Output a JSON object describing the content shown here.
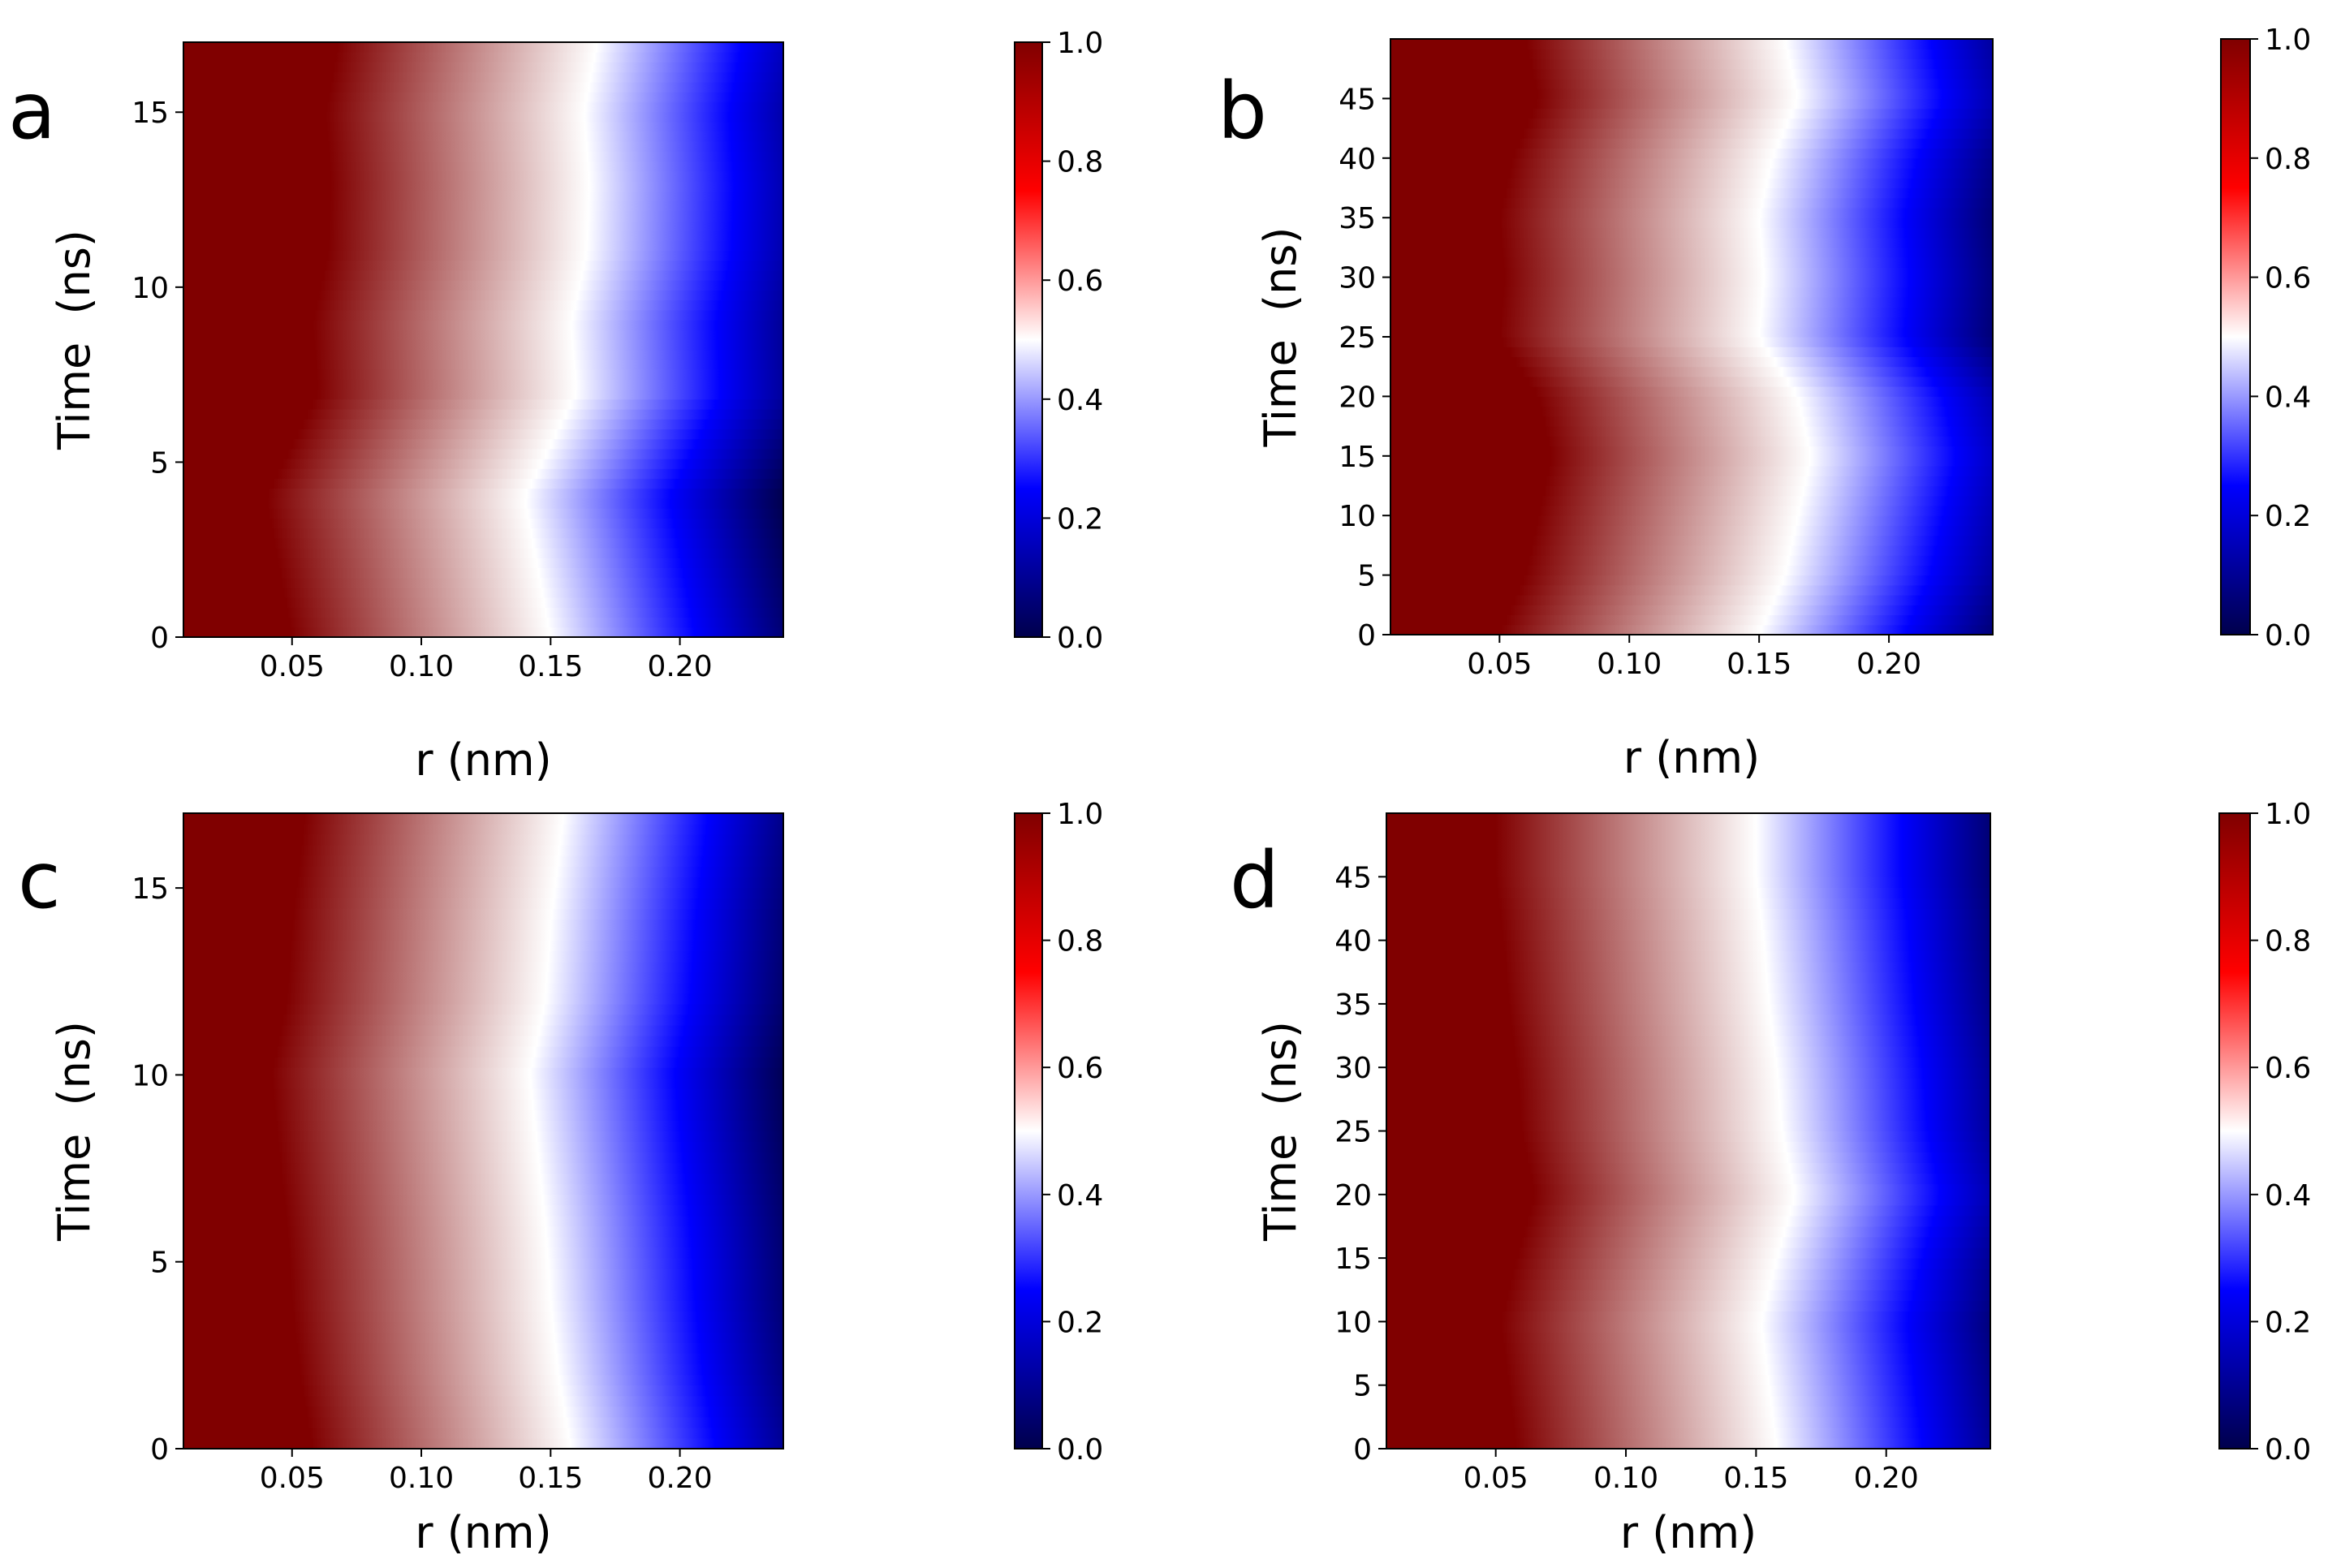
{
  "chart_data": [
    {
      "type": "heatmap",
      "panel_label": "a",
      "xlabel": "r (nm)",
      "ylabel": "Time  (ns)",
      "xlim": [
        0.008,
        0.24
      ],
      "ylim": [
        0,
        17
      ],
      "xticks": [
        0.05,
        0.1,
        0.15,
        0.2
      ],
      "xtick_labels": [
        "0.05",
        "0.10",
        "0.15",
        "0.20"
      ],
      "yticks": [
        0,
        5,
        10,
        15
      ],
      "ytick_labels": [
        "0",
        "5",
        "10",
        "15"
      ],
      "colorbar": {
        "min": 0.0,
        "max": 1.0,
        "ticks": [
          "0.0",
          "0.2",
          "0.4",
          "0.6",
          "0.8",
          "1.0"
        ],
        "colormap": "seismic"
      },
      "boundary_r_at_time": [
        {
          "t": 0,
          "r": 0.15
        },
        {
          "t": 2,
          "r": 0.145
        },
        {
          "t": 4,
          "r": 0.14
        },
        {
          "t": 5.5,
          "r": 0.15
        },
        {
          "t": 7,
          "r": 0.16
        },
        {
          "t": 9,
          "r": 0.158
        },
        {
          "t": 11,
          "r": 0.164
        },
        {
          "t": 13,
          "r": 0.165
        },
        {
          "t": 15,
          "r": 0.163
        },
        {
          "t": 17,
          "r": 0.168
        }
      ]
    },
    {
      "type": "heatmap",
      "panel_label": "b",
      "xlabel": "r (nm)",
      "ylabel": "Time  (ns)",
      "xlim": [
        0.008,
        0.24
      ],
      "ylim": [
        0,
        50
      ],
      "xticks": [
        0.05,
        0.1,
        0.15,
        0.2
      ],
      "xtick_labels": [
        "0.05",
        "0.10",
        "0.15",
        "0.20"
      ],
      "yticks": [
        0,
        5,
        10,
        15,
        20,
        25,
        30,
        35,
        40,
        45
      ],
      "ytick_labels": [
        "0",
        "5",
        "10",
        "15",
        "20",
        "25",
        "30",
        "35",
        "40",
        "45"
      ],
      "colorbar": {
        "min": 0.0,
        "max": 1.0,
        "ticks": [
          "0.0",
          "0.2",
          "0.4",
          "0.6",
          "0.8",
          "1.0"
        ],
        "colormap": "seismic"
      },
      "boundary_r_at_time": [
        {
          "t": 0,
          "r": 0.15
        },
        {
          "t": 5,
          "r": 0.16
        },
        {
          "t": 10,
          "r": 0.165
        },
        {
          "t": 15,
          "r": 0.17
        },
        {
          "t": 20,
          "r": 0.165
        },
        {
          "t": 25,
          "r": 0.15
        },
        {
          "t": 30,
          "r": 0.152
        },
        {
          "t": 35,
          "r": 0.15
        },
        {
          "t": 40,
          "r": 0.155
        },
        {
          "t": 45,
          "r": 0.165
        },
        {
          "t": 50,
          "r": 0.16
        }
      ]
    },
    {
      "type": "heatmap",
      "panel_label": "c",
      "xlabel": "r (nm)",
      "ylabel": "Time  (ns)",
      "xlim": [
        0.008,
        0.24
      ],
      "ylim": [
        0,
        17
      ],
      "xticks": [
        0.05,
        0.1,
        0.15,
        0.2
      ],
      "xtick_labels": [
        "0.05",
        "0.10",
        "0.15",
        "0.20"
      ],
      "yticks": [
        0,
        5,
        10,
        15
      ],
      "ytick_labels": [
        "0",
        "5",
        "10",
        "15"
      ],
      "colorbar": {
        "min": 0.0,
        "max": 1.0,
        "ticks": [
          "0.0",
          "0.2",
          "0.4",
          "0.6",
          "0.8",
          "1.0"
        ],
        "colormap": "seismic"
      },
      "boundary_r_at_time": [
        {
          "t": 0,
          "r": 0.158
        },
        {
          "t": 2,
          "r": 0.153
        },
        {
          "t": 4,
          "r": 0.15
        },
        {
          "t": 6,
          "r": 0.148
        },
        {
          "t": 8,
          "r": 0.145
        },
        {
          "t": 10,
          "r": 0.142
        },
        {
          "t": 12,
          "r": 0.148
        },
        {
          "t": 14,
          "r": 0.15
        },
        {
          "t": 17,
          "r": 0.155
        }
      ]
    },
    {
      "type": "heatmap",
      "panel_label": "d",
      "xlabel": "r (nm)",
      "ylabel": "Time  (ns)",
      "xlim": [
        0.008,
        0.24
      ],
      "ylim": [
        0,
        50
      ],
      "xticks": [
        0.05,
        0.1,
        0.15,
        0.2
      ],
      "xtick_labels": [
        "0.05",
        "0.10",
        "0.15",
        "0.20"
      ],
      "yticks": [
        0,
        5,
        10,
        15,
        20,
        25,
        30,
        35,
        40,
        45
      ],
      "ytick_labels": [
        "0",
        "5",
        "10",
        "15",
        "20",
        "25",
        "30",
        "35",
        "40",
        "45"
      ],
      "colorbar": {
        "min": 0.0,
        "max": 1.0,
        "ticks": [
          "0.0",
          "0.2",
          "0.4",
          "0.6",
          "0.8",
          "1.0"
        ],
        "colormap": "seismic"
      },
      "boundary_r_at_time": [
        {
          "t": 0,
          "r": 0.158
        },
        {
          "t": 5,
          "r": 0.155
        },
        {
          "t": 10,
          "r": 0.152
        },
        {
          "t": 15,
          "r": 0.158
        },
        {
          "t": 20,
          "r": 0.165
        },
        {
          "t": 25,
          "r": 0.16
        },
        {
          "t": 30,
          "r": 0.158
        },
        {
          "t": 35,
          "r": 0.155
        },
        {
          "t": 40,
          "r": 0.153
        },
        {
          "t": 45,
          "r": 0.15
        },
        {
          "t": 50,
          "r": 0.15
        }
      ]
    }
  ]
}
